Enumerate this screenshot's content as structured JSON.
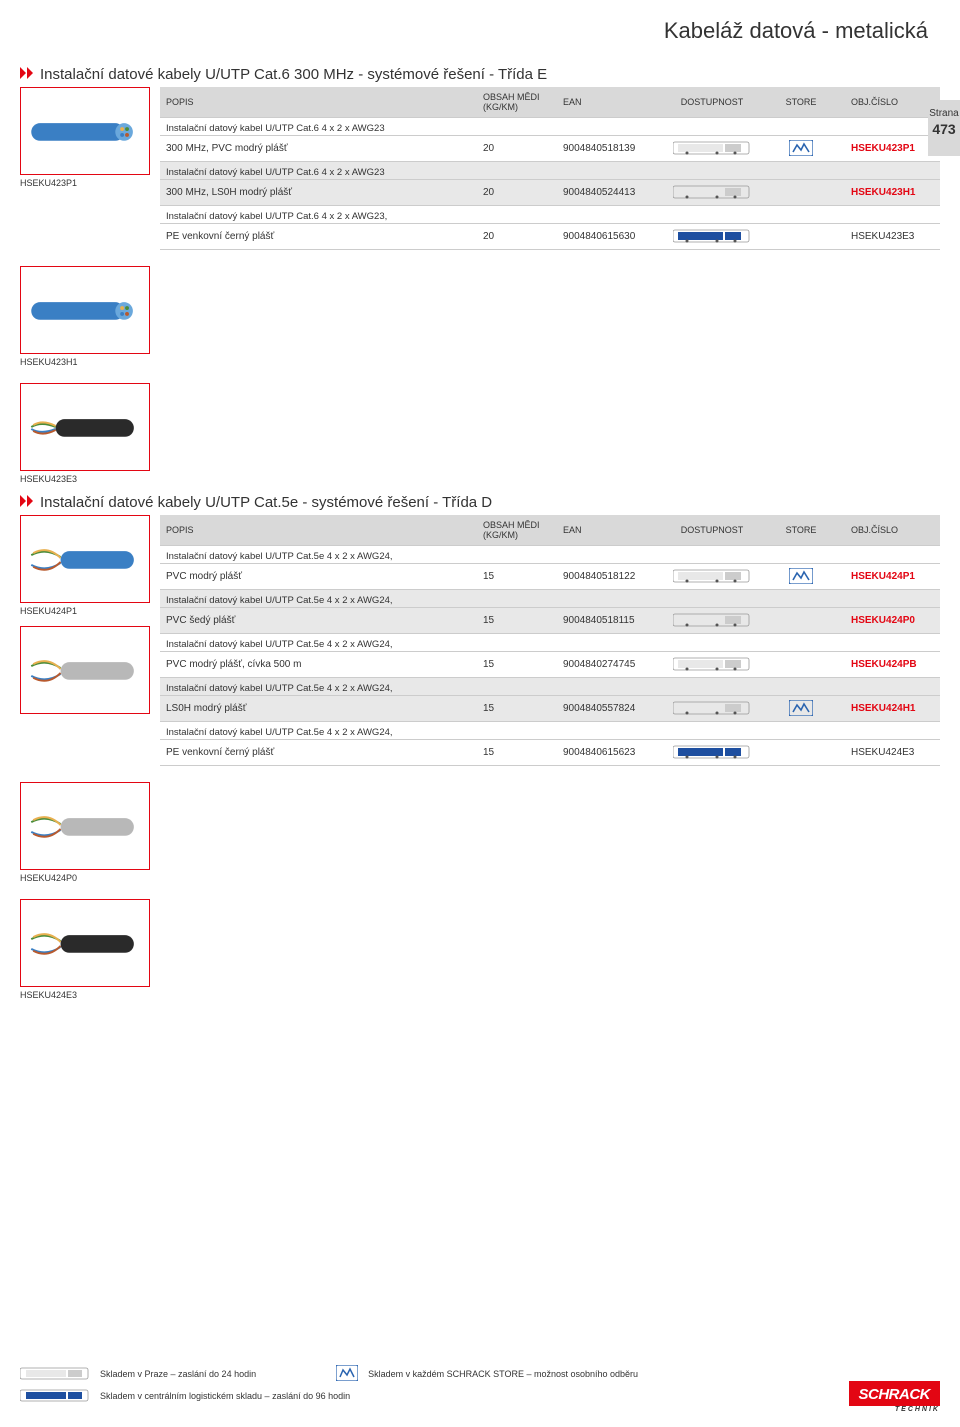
{
  "page": {
    "title": "Kabeláž datová - metalická",
    "side_tab": {
      "label": "Strana",
      "number": "473"
    }
  },
  "colors": {
    "accent": "#e30613",
    "header_bg": "#d9d9d9",
    "shaded_row": "#e8e8e8",
    "text": "#333333",
    "border": "#cccccc",
    "blue_cable": "#3a7fc4",
    "black_cable": "#2a2a2a",
    "grey_cable": "#b8b8b8",
    "blue_truck": "#1e4fa0",
    "store_blue": "#2a64b0"
  },
  "table_headers": {
    "popis": "POPIS",
    "obsah": "OBSAH MĚDI (KG/KM)",
    "ean": "EAN",
    "dostupnost": "DOSTUPNOST",
    "store": "STORE",
    "objcislo": "OBJ.ČÍSLO"
  },
  "sections": [
    {
      "title": "Instalační datové kabely U/UTP Cat.6 300 MHz - systémové řešení - Třída E",
      "left_images": [
        {
          "type": "cable-blue",
          "label": "HSEKU423P1"
        }
      ],
      "rows": [
        {
          "desc": "Instalační datový kabel U/UTP Cat.6 4 x 2 x AWG23",
          "shaded": false
        },
        {
          "data": [
            "300 MHz, PVC modrý plášť",
            "20",
            "9004840518139"
          ],
          "truck": "white",
          "store": true,
          "obj": "HSEKU423P1",
          "bold": true,
          "shaded": false
        },
        {
          "desc": "Instalační datový kabel U/UTP Cat.6 4 x 2 x AWG23",
          "shaded": true
        },
        {
          "data": [
            "300 MHz, LS0H modrý plášť",
            "20",
            "9004840524413"
          ],
          "truck": "white",
          "store": false,
          "obj": "HSEKU423H1",
          "bold": true,
          "shaded": true
        },
        {
          "desc": "Instalační datový kabel U/UTP Cat.6 4 x 2 x AWG23,",
          "shaded": false
        },
        {
          "data": [
            "PE venkovní černý plášť",
            "20",
            "9004840615630"
          ],
          "truck": "blue",
          "store": false,
          "obj": "HSEKU423E3",
          "bold": false,
          "shaded": false
        }
      ],
      "standalone_images": [
        {
          "type": "cable-blue",
          "label": "HSEKU423H1"
        },
        {
          "type": "cable-black",
          "label": "HSEKU423E3"
        }
      ]
    },
    {
      "title": "Instalační datové kabely U/UTP Cat.5e - systémové řešení - Třída D",
      "left_images": [
        {
          "type": "cable-blue-wires",
          "label": "HSEKU424P1"
        },
        {
          "type": "cable-grey-wires",
          "label": ""
        }
      ],
      "rows": [
        {
          "desc": "Instalační datový kabel U/UTP Cat.5e 4 x 2 x AWG24,",
          "shaded": false
        },
        {
          "data": [
            "PVC modrý plášť",
            "15",
            "9004840518122"
          ],
          "truck": "white",
          "store": true,
          "obj": "HSEKU424P1",
          "bold": true,
          "shaded": false
        },
        {
          "desc": "Instalační datový kabel U/UTP Cat.5e 4 x 2 x AWG24,",
          "shaded": true
        },
        {
          "data": [
            "PVC šedý plášť",
            "15",
            "9004840518115"
          ],
          "truck": "white",
          "store": false,
          "obj": "HSEKU424P0",
          "bold": true,
          "shaded": true
        },
        {
          "desc": "Instalační datový kabel U/UTP Cat.5e 4 x 2 x AWG24,",
          "shaded": false
        },
        {
          "data": [
            "PVC modrý plášť, cívka 500 m",
            "15",
            "9004840274745"
          ],
          "truck": "white",
          "store": false,
          "obj": "HSEKU424PB",
          "bold": true,
          "shaded": false
        },
        {
          "desc": "Instalační datový kabel U/UTP Cat.5e 4 x 2 x AWG24,",
          "shaded": true
        },
        {
          "data": [
            "LS0H modrý plášť",
            "15",
            "9004840557824"
          ],
          "truck": "white",
          "store": true,
          "obj": "HSEKU424H1",
          "bold": true,
          "shaded": true
        },
        {
          "desc": "Instalační datový kabel U/UTP Cat.5e 4 x 2 x AWG24,",
          "shaded": false
        },
        {
          "data": [
            "PE venkovní černý plášť",
            "15",
            "9004840615623"
          ],
          "truck": "blue",
          "store": false,
          "obj": "HSEKU424E3",
          "bold": false,
          "shaded": false
        }
      ],
      "standalone_images": [
        {
          "type": "cable-grey-wires",
          "label": "HSEKU424P0"
        },
        {
          "type": "cable-black-wires",
          "label": "HSEKU424E3"
        }
      ]
    }
  ],
  "footer": {
    "line1a": "Skladem v Praze – zaslání do 24 hodin",
    "line1b": "Skladem v každém SCHRACK STORE – možnost osobního odběru",
    "line2": "Skladem v centrálním logistickém skladu – zaslání do 96 hodin",
    "logo": "SCHRACK",
    "logo_sub": "TECHNIK"
  }
}
